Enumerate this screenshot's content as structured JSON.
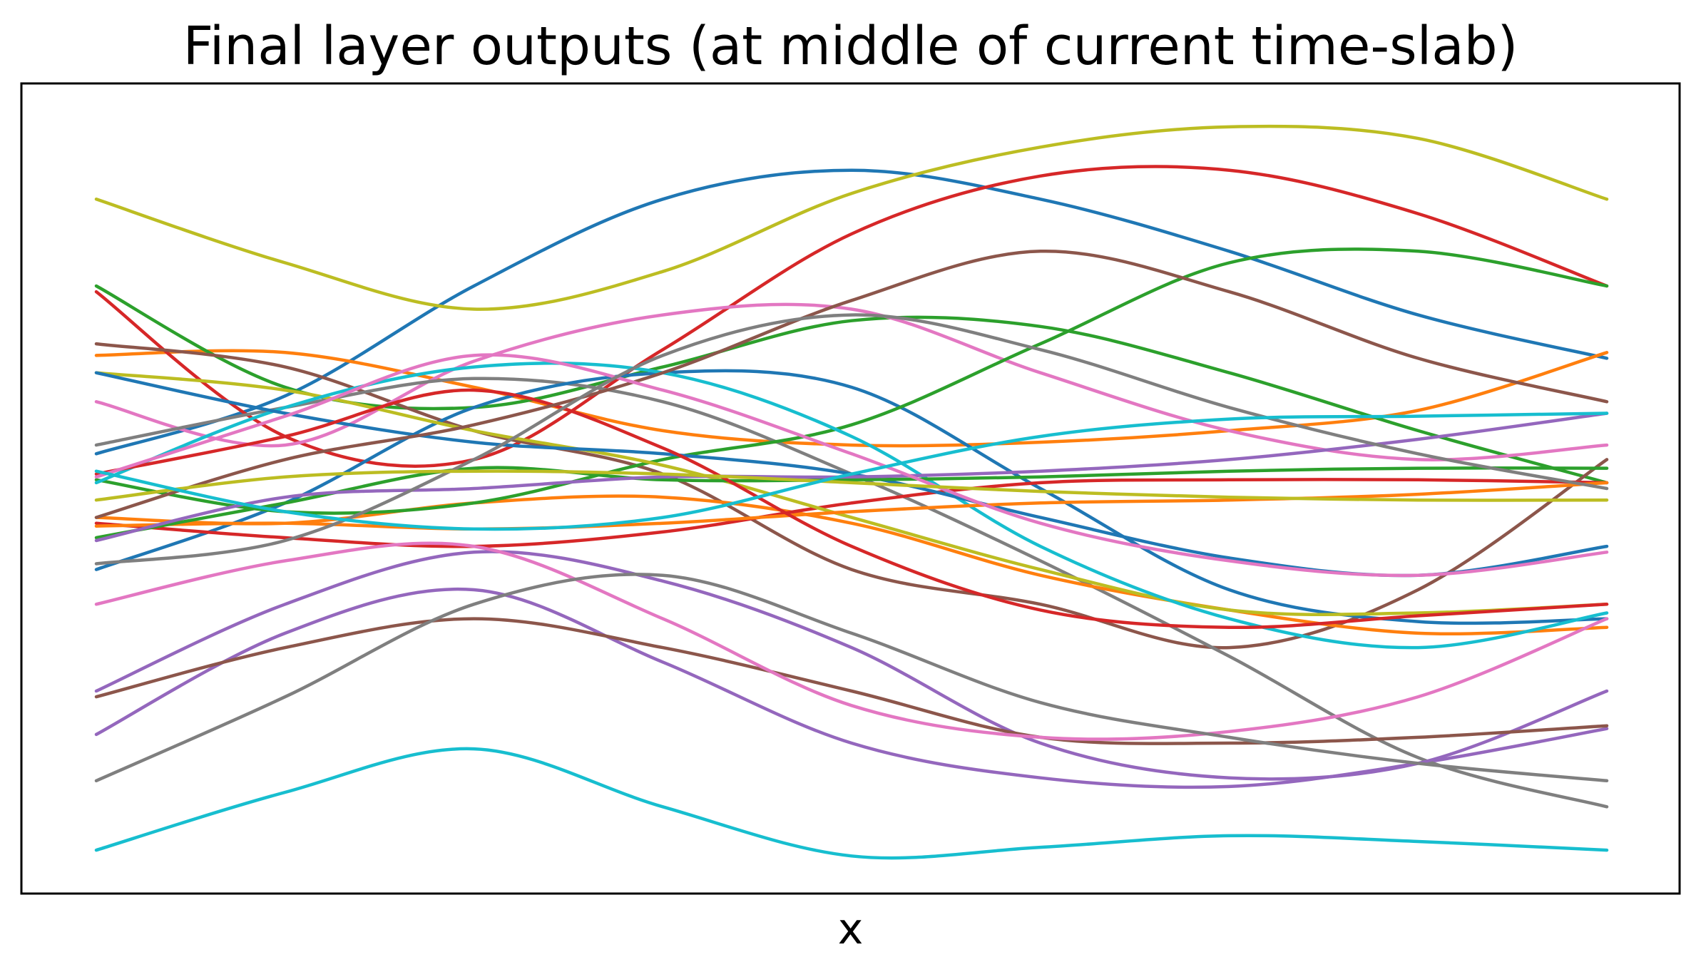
{
  "chart_data": {
    "type": "line",
    "title": "Final layer outputs (at middle of current time-slab)",
    "xlabel": "x",
    "ylabel": "",
    "xlim": [
      0,
      1
    ],
    "ylim": [
      -1.4,
      1.4
    ],
    "xticks": [],
    "yticks": [],
    "grid": false,
    "legend": "none",
    "x": [
      0,
      0.125,
      0.25,
      0.375,
      0.5,
      0.625,
      0.75,
      0.875,
      1.0
    ],
    "colors": [
      "#1f77b4",
      "#ff7f0e",
      "#2ca02c",
      "#d62728",
      "#9467bd",
      "#8c564b",
      "#e377c2",
      "#7f7f7f",
      "#bcbd22",
      "#17becf"
    ],
    "series": [
      {
        "values": [
          0.12,
          0.32,
          0.7,
          1.0,
          1.1,
          1.0,
          0.82,
          0.6,
          0.45
        ]
      },
      {
        "values": [
          0.46,
          0.47,
          0.35,
          0.2,
          0.15,
          0.16,
          0.2,
          0.27,
          0.47
        ]
      },
      {
        "values": [
          0.7,
          0.35,
          0.28,
          0.42,
          0.58,
          0.56,
          0.4,
          0.2,
          0.02
        ]
      },
      {
        "values": [
          0.68,
          0.18,
          0.1,
          0.48,
          0.88,
          1.08,
          1.1,
          0.95,
          0.7
        ]
      },
      {
        "values": [
          -0.85,
          -0.5,
          -0.35,
          -0.6,
          -0.88,
          -1.0,
          -1.03,
          -0.95,
          -0.83
        ]
      },
      {
        "values": [
          0.5,
          0.42,
          0.2,
          0.05,
          -0.28,
          -0.4,
          -0.55,
          -0.35,
          0.1
        ]
      },
      {
        "values": [
          0.3,
          0.15,
          0.44,
          0.6,
          0.62,
          0.4,
          0.2,
          0.1,
          0.15
        ]
      },
      {
        "values": [
          0.15,
          0.28,
          0.38,
          0.3,
          0.05,
          -0.25,
          -0.58,
          -0.93,
          -1.1
        ]
      },
      {
        "values": [
          1.0,
          0.78,
          0.62,
          0.75,
          1.02,
          1.18,
          1.25,
          1.21,
          1.0
        ]
      },
      {
        "values": [
          -1.25,
          -1.05,
          -0.9,
          -1.1,
          -1.27,
          -1.24,
          -1.2,
          -1.22,
          -1.25
        ]
      },
      {
        "values": [
          -0.28,
          -0.05,
          0.28,
          0.4,
          0.35,
          0.0,
          -0.35,
          -0.46,
          -0.45
        ]
      },
      {
        "values": [
          -0.1,
          -0.12,
          -0.05,
          -0.03,
          -0.12,
          -0.3,
          -0.42,
          -0.5,
          -0.48
        ]
      },
      {
        "values": [
          0.03,
          -0.08,
          -0.05,
          0.1,
          0.22,
          0.5,
          0.78,
          0.82,
          0.7
        ]
      },
      {
        "values": [
          -0.12,
          -0.17,
          -0.2,
          -0.15,
          -0.05,
          0.02,
          0.03,
          0.03,
          0.02
        ]
      },
      {
        "values": [
          -0.7,
          -0.4,
          -0.22,
          -0.32,
          -0.55,
          -0.88,
          -1.0,
          -0.95,
          -0.7
        ]
      },
      {
        "values": [
          -0.72,
          -0.55,
          -0.45,
          -0.55,
          -0.7,
          -0.86,
          -0.88,
          -0.86,
          -0.82
        ]
      },
      {
        "values": [
          -0.4,
          -0.25,
          -0.2,
          -0.45,
          -0.75,
          -0.86,
          -0.84,
          -0.72,
          -0.45
        ]
      },
      {
        "values": [
          -1.01,
          -0.72,
          -0.4,
          -0.3,
          -0.5,
          -0.74,
          -0.86,
          -0.95,
          -1.01
        ]
      },
      {
        "values": [
          0.4,
          0.34,
          0.2,
          0.08,
          -0.1,
          -0.28,
          -0.42,
          -0.43,
          -0.4
        ]
      },
      {
        "values": [
          0.02,
          0.28,
          0.42,
          0.4,
          0.18,
          -0.2,
          -0.45,
          -0.55,
          -0.43
        ]
      },
      {
        "values": [
          0.4,
          0.26,
          0.16,
          0.12,
          0.05,
          -0.1,
          -0.24,
          -0.3,
          -0.2
        ]
      },
      {
        "values": [
          -0.13,
          -0.12,
          -0.14,
          -0.12,
          -0.08,
          -0.05,
          -0.04,
          -0.02,
          0.02
        ]
      },
      {
        "values": [
          -0.17,
          -0.05,
          0.07,
          0.03,
          0.03,
          0.04,
          0.06,
          0.07,
          0.07
        ]
      },
      {
        "values": [
          0.05,
          0.18,
          0.34,
          0.14,
          -0.2,
          -0.42,
          -0.48,
          -0.44,
          -0.4
        ]
      },
      {
        "values": [
          -0.18,
          -0.03,
          0.0,
          0.04,
          0.04,
          0.06,
          0.1,
          0.17,
          0.26
        ]
      },
      {
        "values": [
          -0.1,
          0.1,
          0.22,
          0.4,
          0.65,
          0.82,
          0.68,
          0.45,
          0.3
        ]
      },
      {
        "values": [
          0.04,
          0.25,
          0.46,
          0.34,
          0.12,
          -0.12,
          -0.25,
          -0.3,
          -0.22
        ]
      },
      {
        "values": [
          -0.26,
          -0.18,
          0.1,
          0.46,
          0.6,
          0.48,
          0.28,
          0.12,
          0.0
        ]
      },
      {
        "values": [
          -0.04,
          0.04,
          0.06,
          0.05,
          0.02,
          -0.01,
          -0.03,
          -0.04,
          -0.04
        ]
      },
      {
        "values": [
          0.06,
          -0.08,
          -0.14,
          -0.1,
          0.05,
          0.18,
          0.24,
          0.25,
          0.26
        ]
      }
    ]
  }
}
